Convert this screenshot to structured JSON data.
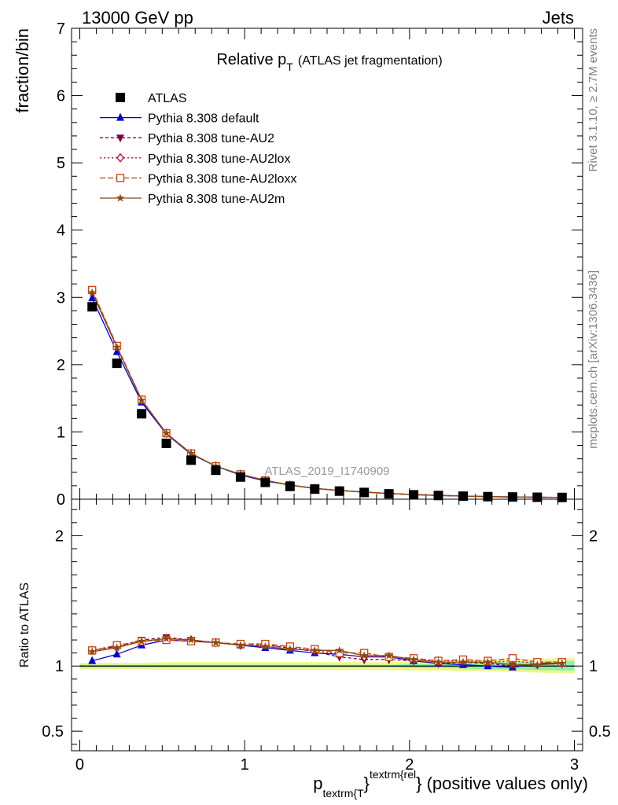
{
  "header": {
    "left": "13000 GeV pp",
    "right": "Jets"
  },
  "side_labels": {
    "rivet": "Rivet 3.1.10, ≥ 2.7M events",
    "mcplots": "mcplots.cern.ch [arXiv:1306.3436]"
  },
  "colors": {
    "atlas": "#000000",
    "default": "#0000dd",
    "au2": "#800040",
    "au2lox": "#b01030",
    "au2loxx": "#c84010",
    "au2m": "#8b4a10",
    "band_yellow": "#f2f58a",
    "band_green": "#8cf0a8"
  },
  "chart_data": [
    {
      "type": "line",
      "title": "Relative p",
      "title_sub": "T",
      "title_note": "(ATLAS jet fragmentation)",
      "ylabel": "fraction/bin",
      "watermark": "ATLAS_2019_I1740909",
      "xlim": [
        -0.05,
        3.05
      ],
      "ylim": [
        0,
        7
      ],
      "yticks": [
        0,
        1,
        2,
        3,
        4,
        5,
        6,
        7
      ],
      "x": [
        0.075,
        0.225,
        0.375,
        0.525,
        0.675,
        0.825,
        0.975,
        1.125,
        1.275,
        1.425,
        1.575,
        1.725,
        1.875,
        2.025,
        2.175,
        2.325,
        2.475,
        2.625,
        2.775,
        2.925
      ],
      "legend": [
        {
          "key": "atlas",
          "name": "ATLAS",
          "marker": "square",
          "dash": ""
        },
        {
          "key": "default",
          "name": "Pythia 8.308 default",
          "marker": "triangle-up",
          "dash": ""
        },
        {
          "key": "au2",
          "name": "Pythia 8.308 tune-AU2",
          "marker": "triangle-down",
          "dash": "4,3"
        },
        {
          "key": "au2lox",
          "name": "Pythia 8.308 tune-AU2lox",
          "marker": "diamond-open",
          "dash": "2,3"
        },
        {
          "key": "au2loxx",
          "name": "Pythia 8.308 tune-AU2loxx",
          "marker": "square-open",
          "dash": "7,3"
        },
        {
          "key": "au2m",
          "name": "Pythia 8.308 tune-AU2m",
          "marker": "star",
          "dash": ""
        }
      ],
      "series": [
        {
          "key": "atlas",
          "values": [
            2.86,
            2.02,
            1.27,
            0.83,
            0.58,
            0.43,
            0.33,
            0.25,
            0.19,
            0.15,
            0.12,
            0.1,
            0.08,
            0.065,
            0.055,
            0.045,
            0.038,
            0.033,
            0.029,
            0.026
          ]
        },
        {
          "key": "default",
          "values": [
            2.99,
            2.19,
            1.44,
            0.97,
            0.67,
            0.49,
            0.36,
            0.27,
            0.21,
            0.16,
            0.13,
            0.105,
            0.085,
            0.068,
            0.056,
            0.046,
            0.038,
            0.032,
            0.029,
            0.026
          ]
        },
        {
          "key": "au2",
          "values": [
            3.08,
            2.26,
            1.47,
            0.98,
            0.68,
            0.49,
            0.37,
            0.28,
            0.21,
            0.16,
            0.13,
            0.105,
            0.085,
            0.068,
            0.056,
            0.047,
            0.039,
            0.033,
            0.029,
            0.026
          ]
        },
        {
          "key": "au2lox",
          "values": [
            3.09,
            2.27,
            1.47,
            0.98,
            0.68,
            0.49,
            0.37,
            0.28,
            0.21,
            0.16,
            0.13,
            0.105,
            0.085,
            0.068,
            0.056,
            0.047,
            0.039,
            0.034,
            0.03,
            0.027
          ]
        },
        {
          "key": "au2loxx",
          "values": [
            3.11,
            2.28,
            1.48,
            0.98,
            0.68,
            0.49,
            0.37,
            0.28,
            0.21,
            0.16,
            0.13,
            0.105,
            0.085,
            0.068,
            0.057,
            0.047,
            0.039,
            0.034,
            0.03,
            0.027
          ]
        },
        {
          "key": "au2m",
          "values": [
            3.07,
            2.26,
            1.47,
            0.98,
            0.68,
            0.49,
            0.37,
            0.28,
            0.21,
            0.16,
            0.13,
            0.107,
            0.086,
            0.068,
            0.056,
            0.046,
            0.039,
            0.033,
            0.029,
            0.026
          ]
        }
      ]
    },
    {
      "type": "line",
      "ylabel": "Ratio to ATLAS",
      "xlabel": "p",
      "xlabel_sub": "textrm{T",
      "xlabel_sup": "textrm{rel",
      "xlabel_close": "}",
      "xlabel_note": "} (positive values only)",
      "xlim": [
        -0.05,
        3.05
      ],
      "ylim": [
        0.35,
        2.28
      ],
      "yticks": [
        0.5,
        1,
        2
      ],
      "ytick_labels": [
        "0.5",
        "1",
        "2"
      ],
      "xticks": [
        0,
        1,
        2,
        3
      ],
      "xtick_labels": [
        "0",
        "1",
        "2",
        "3"
      ],
      "band_yellow": {
        "lo": [
          0.975,
          0.975,
          0.975,
          0.97,
          0.97,
          0.97,
          0.97,
          0.97,
          0.97,
          0.97,
          0.97,
          0.97,
          0.97,
          0.965,
          0.965,
          0.96,
          0.96,
          0.955,
          0.95,
          0.945
        ],
        "hi": [
          1.025,
          1.025,
          1.025,
          1.03,
          1.03,
          1.03,
          1.03,
          1.03,
          1.03,
          1.03,
          1.03,
          1.03,
          1.03,
          1.035,
          1.04,
          1.045,
          1.05,
          1.05,
          1.055,
          1.06
        ]
      },
      "band_green": {
        "lo": [
          0.99,
          0.99,
          0.99,
          0.99,
          0.99,
          0.99,
          0.99,
          0.99,
          0.99,
          0.99,
          0.99,
          0.99,
          0.99,
          0.985,
          0.985,
          0.98,
          0.975,
          0.975,
          0.97,
          0.965
        ],
        "hi": [
          1.01,
          1.01,
          1.01,
          1.01,
          1.01,
          1.01,
          1.01,
          1.01,
          1.01,
          1.01,
          1.01,
          1.01,
          1.01,
          1.015,
          1.02,
          1.025,
          1.03,
          1.03,
          1.035,
          1.04
        ]
      },
      "series": [
        {
          "key": "default",
          "values": [
            1.04,
            1.09,
            1.16,
            1.2,
            1.19,
            1.18,
            1.16,
            1.14,
            1.12,
            1.1,
            1.09,
            1.07,
            1.07,
            1.04,
            1.02,
            1.01,
            1.0,
            0.99,
            1.02,
            1.02
          ]
        },
        {
          "key": "au2",
          "values": [
            1.12,
            1.15,
            1.2,
            1.22,
            1.2,
            1.18,
            1.16,
            1.16,
            1.14,
            1.11,
            1.07,
            1.05,
            1.05,
            1.04,
            1.02,
            1.03,
            1.02,
            1.0,
            1.01,
            1.02
          ]
        },
        {
          "key": "au2lox",
          "values": [
            1.12,
            1.15,
            1.19,
            1.21,
            1.2,
            1.18,
            1.16,
            1.16,
            1.14,
            1.12,
            1.09,
            1.07,
            1.07,
            1.05,
            1.04,
            1.04,
            1.03,
            1.04,
            1.02,
            1.02
          ]
        },
        {
          "key": "au2loxx",
          "values": [
            1.12,
            1.16,
            1.19,
            1.2,
            1.19,
            1.18,
            1.17,
            1.17,
            1.15,
            1.13,
            1.1,
            1.1,
            1.07,
            1.06,
            1.04,
            1.05,
            1.04,
            1.06,
            1.03,
            1.03
          ]
        },
        {
          "key": "au2m",
          "values": [
            1.11,
            1.14,
            1.19,
            1.21,
            1.2,
            1.18,
            1.16,
            1.15,
            1.13,
            1.12,
            1.12,
            1.08,
            1.08,
            1.05,
            1.03,
            1.03,
            1.03,
            1.01,
            1.01,
            1.02
          ]
        }
      ]
    }
  ]
}
